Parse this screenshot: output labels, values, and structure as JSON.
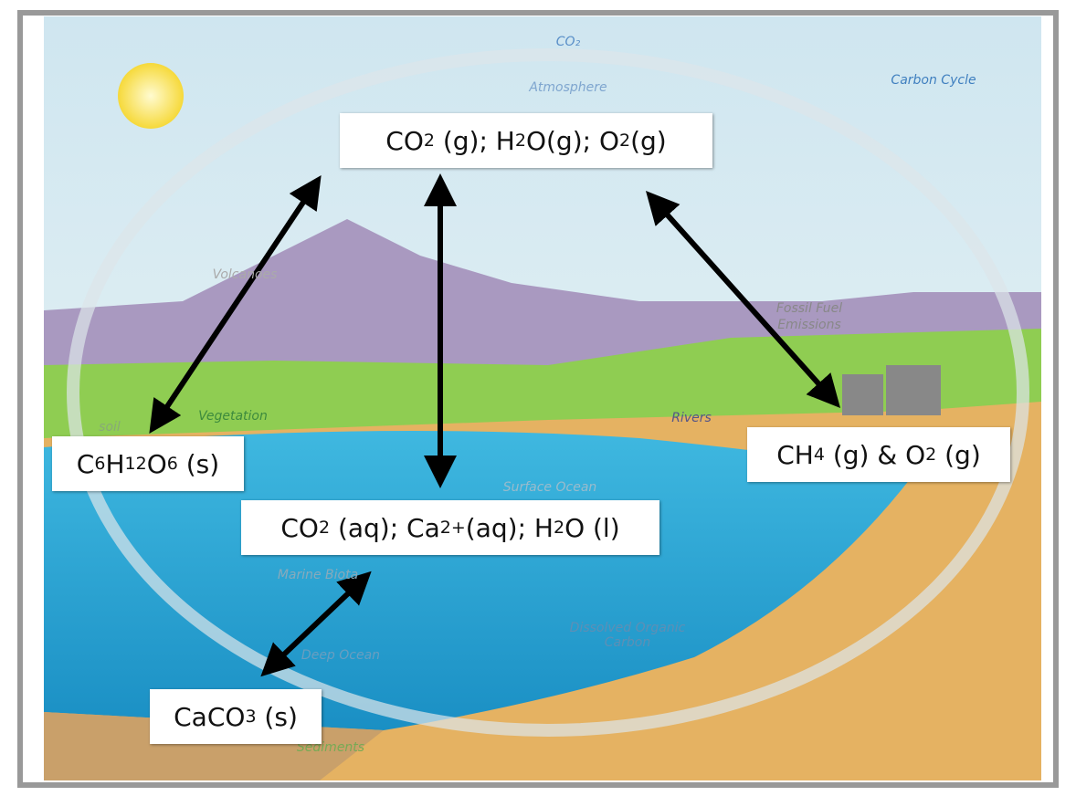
{
  "background_labels": [
    {
      "text": "CO₂"
    },
    {
      "text": "Atmosphere"
    },
    {
      "text": "Carbon Cycle"
    },
    {
      "text": "Volcanoes"
    },
    {
      "text": "soil"
    },
    {
      "text": "Vegetation"
    },
    {
      "text": "Fossil Fuel"
    },
    {
      "text": "Emissions"
    },
    {
      "text": "Rivers"
    },
    {
      "text": "Surface Ocean"
    },
    {
      "text": "Marine Biota"
    },
    {
      "text": "Deep Ocean"
    },
    {
      "text": "Dissolved Organic"
    },
    {
      "text": "Carbon"
    },
    {
      "text": "Sediments"
    }
  ],
  "formula_boxes": [
    {
      "parts": [
        {
          "text": "CO"
        },
        {
          "sub": "2"
        },
        {
          "text": " (g); H"
        },
        {
          "sub": "2"
        },
        {
          "text": "O(g); O"
        },
        {
          "sub": "2"
        },
        {
          "text": "(g)"
        }
      ]
    },
    {
      "parts": [
        {
          "text": "C"
        },
        {
          "sub": "6"
        },
        {
          "text": "H"
        },
        {
          "sub": "12"
        },
        {
          "text": "O"
        },
        {
          "sub": "6"
        },
        {
          "text": " (s)"
        }
      ]
    },
    {
      "parts": [
        {
          "text": "CH"
        },
        {
          "sub": "4"
        },
        {
          "text": " (g) & O"
        },
        {
          "sub": "2"
        },
        {
          "text": " (g)"
        }
      ]
    },
    {
      "parts": [
        {
          "text": "CO"
        },
        {
          "sub": "2"
        },
        {
          "text": " (aq); Ca"
        },
        {
          "sup": "2+"
        },
        {
          "text": "(aq); H"
        },
        {
          "sub": "2"
        },
        {
          "text": "O (l)"
        }
      ]
    },
    {
      "parts": [
        {
          "text": "CaCO"
        },
        {
          "sub": "3"
        },
        {
          "text": " (s)"
        }
      ]
    }
  ]
}
